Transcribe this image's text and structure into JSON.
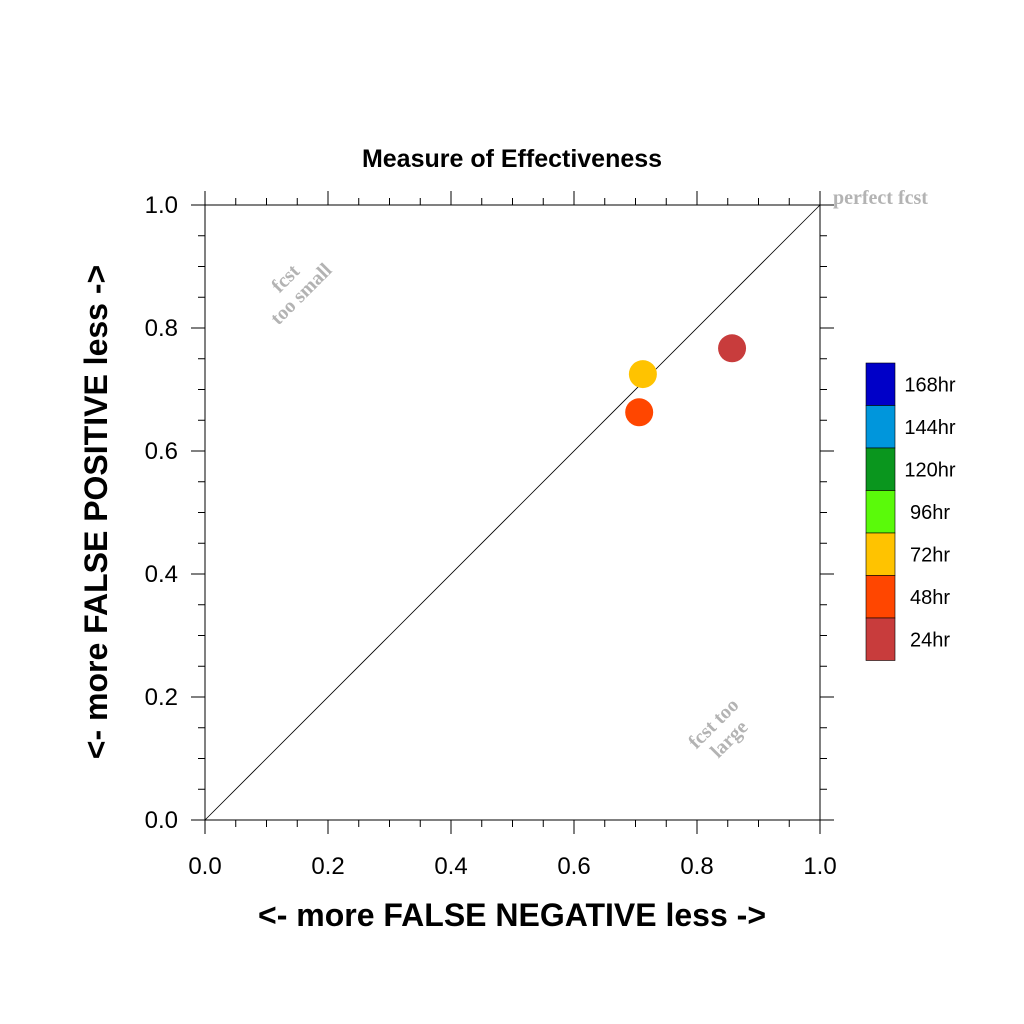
{
  "chart_data": {
    "type": "scatter",
    "title": "Measure of Effectiveness",
    "xlabel": "<- more   FALSE NEGATIVE   less ->",
    "ylabel": "<- more   FALSE POSITIVE   less ->",
    "xlim": [
      0,
      1
    ],
    "ylim": [
      0,
      1
    ],
    "xticks": [
      "0.0",
      "0.2",
      "0.4",
      "0.6",
      "0.8",
      "1.0"
    ],
    "yticks": [
      "0.0",
      "0.2",
      "0.4",
      "0.6",
      "0.8",
      "1.0"
    ],
    "grid": false,
    "diagonal_line": true,
    "legend_position": "right",
    "annotations": {
      "perfect": "perfect fcst",
      "small": [
        "fcst",
        "too small"
      ],
      "large": [
        "fcst too",
        "large"
      ]
    },
    "legend": [
      {
        "name": "168hr",
        "color": "#0000c8"
      },
      {
        "name": "144hr",
        "color": "#0096dc"
      },
      {
        "name": "120hr",
        "color": "#0a961e"
      },
      {
        "name": "96hr",
        "color": "#5afa0a"
      },
      {
        "name": "72hr",
        "color": "#ffc300"
      },
      {
        "name": "48hr",
        "color": "#ff4600"
      },
      {
        "name": "24hr",
        "color": "#c83c3c"
      }
    ],
    "series": [
      {
        "name": "24hr",
        "color": "#c83c3c",
        "x": 0.857,
        "y": 0.767
      },
      {
        "name": "48hr",
        "color": "#ff4600",
        "x": 0.706,
        "y": 0.663
      },
      {
        "name": "72hr",
        "color": "#ffc300",
        "x": 0.712,
        "y": 0.725
      }
    ]
  }
}
